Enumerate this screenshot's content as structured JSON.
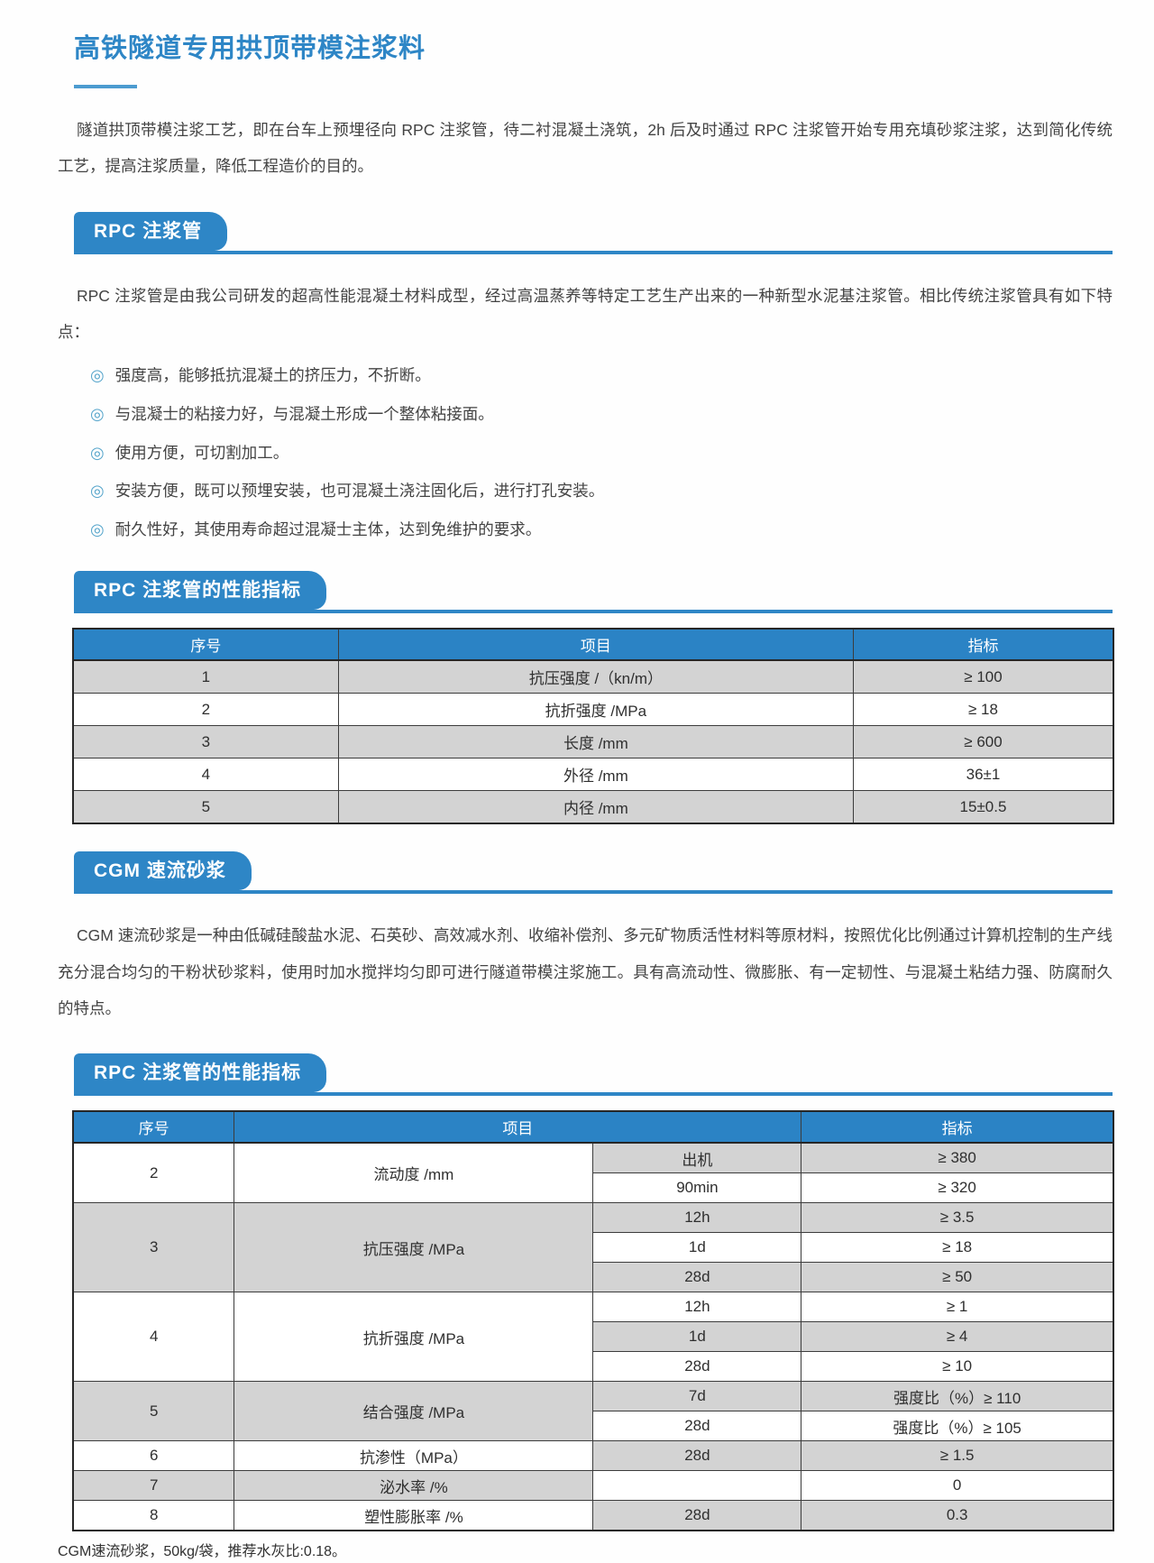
{
  "page": {
    "title": "高铁隧道专用拱顶带模注浆料",
    "intro": "隧道拱顶带模注浆工艺，即在台车上预埋径向 RPC 注浆管，待二衬混凝土浇筑，2h 后及时通过 RPC 注浆管开始专用充填砂浆注浆，达到简化传统工艺，提高注浆质量，降低工程造价的目的。",
    "footnote": "CGM速流砂浆，50kg/袋，推荐水灰比:0.18。"
  },
  "colors": {
    "accent_blue": "#2e86c6",
    "table_header_blue": "#2b83c5",
    "row_gray": "#d3d3d3",
    "bullet_teal": "#56a5cb"
  },
  "sections": {
    "rpc_pipe": {
      "badge": "RPC 注浆管",
      "paragraph": "RPC 注浆管是由我公司研发的超高性能混凝土材料成型，经过高温蒸养等特定工艺生产出来的一种新型水泥基注浆管。相比传统注浆管具有如下特点：",
      "bullet_glyph": "◎",
      "bullets": [
        "强度高，能够抵抗混凝土的挤压力，不折断。",
        "与混凝士的粘接力好，与混凝土形成一个整体粘接面。",
        "使用方便，可切割加工。",
        "安装方便，既可以预埋安装，也可混凝土浇注固化后，进行打孔安装。",
        "耐久性好，其使用寿命超过混凝士主体，达到免维护的要求。"
      ]
    },
    "rpc_table": {
      "badge": "RPC 注浆管的性能指标"
    },
    "cgm": {
      "badge": "CGM 速流砂浆",
      "paragraph": "CGM 速流砂浆是一种由低碱硅酸盐水泥、石英砂、高效减水剂、收缩补偿剂、多元矿物质活性材料等原材料，按照优化比例通过计算机控制的生产线充分混合均匀的干粉状砂浆料，使用时加水搅拌均匀即可进行隧道带模注浆施工。具有高流动性、微膨胀、有一定韧性、与混凝土粘结力强、防腐耐久的特点。"
    },
    "cgm_table": {
      "badge": "RPC 注浆管的性能指标"
    }
  },
  "table1": {
    "headers": [
      "序号",
      "项目",
      "指标"
    ],
    "rows": [
      {
        "no": "1",
        "item": "抗压强度 /（kn/m）",
        "value": "≥ 100"
      },
      {
        "no": "2",
        "item": "抗折强度 /MPa",
        "value": "≥ 18"
      },
      {
        "no": "3",
        "item": "长度 /mm",
        "value": "≥ 600"
      },
      {
        "no": "4",
        "item": "外径 /mm",
        "value": "36±1"
      },
      {
        "no": "5",
        "item": "内径 /mm",
        "value": "15±0.5"
      }
    ]
  },
  "table2": {
    "headers": [
      "序号",
      "项目",
      "指标"
    ],
    "groups": [
      {
        "no": "2",
        "item": "流动度 /mm",
        "subs": [
          {
            "cond": "出机",
            "value": "≥ 380"
          },
          {
            "cond": "90min",
            "value": "≥ 320"
          }
        ]
      },
      {
        "no": "3",
        "item": "抗压强度 /MPa",
        "subs": [
          {
            "cond": "12h",
            "value": "≥ 3.5"
          },
          {
            "cond": "1d",
            "value": "≥ 18"
          },
          {
            "cond": "28d",
            "value": "≥ 50"
          }
        ]
      },
      {
        "no": "4",
        "item": "抗折强度 /MPa",
        "subs": [
          {
            "cond": "12h",
            "value": "≥ 1"
          },
          {
            "cond": "1d",
            "value": "≥ 4"
          },
          {
            "cond": "28d",
            "value": "≥ 10"
          }
        ]
      },
      {
        "no": "5",
        "item": "结合强度 /MPa",
        "subs": [
          {
            "cond": "7d",
            "value": "强度比（%）≥ 110"
          },
          {
            "cond": "28d",
            "value": "强度比（%）≥ 105"
          }
        ]
      },
      {
        "no": "6",
        "item": "抗渗性（MPa）",
        "subs": [
          {
            "cond": "28d",
            "value": "≥ 1.5"
          }
        ]
      },
      {
        "no": "7",
        "item": "泌水率 /%",
        "subs": [
          {
            "cond": "",
            "value": "0"
          }
        ]
      },
      {
        "no": "8",
        "item": "塑性膨胀率 /%",
        "subs": [
          {
            "cond": "28d",
            "value": "0.3"
          }
        ]
      }
    ]
  }
}
